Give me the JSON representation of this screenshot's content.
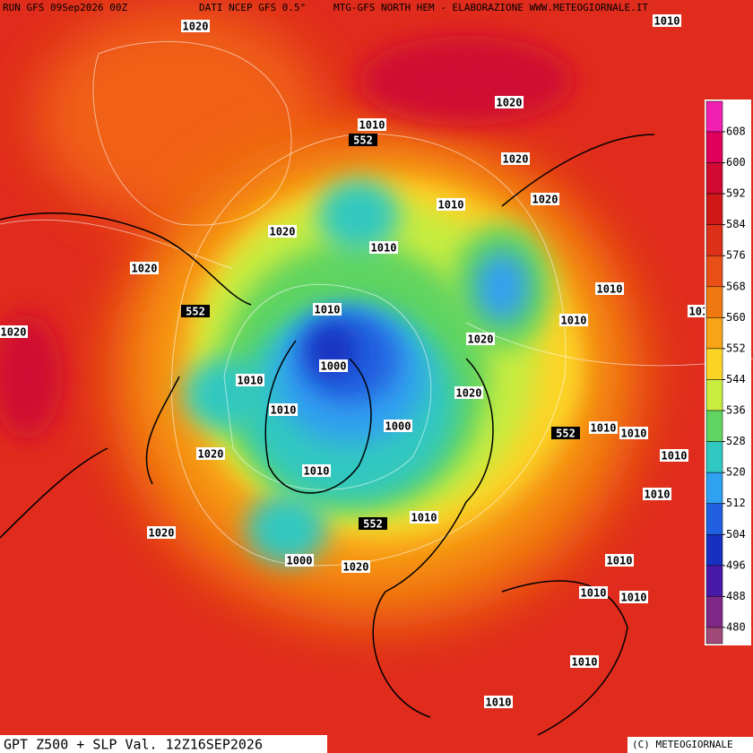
{
  "header": {
    "run": "RUN GFS 09Sep2026 00Z",
    "source": "DATI NCEP GFS 0.5°",
    "credit": "MTG-GFS NORTH HEM - ELABORAZIONE WWW.METEOGIORNALE.IT"
  },
  "footer": {
    "product": "GPT Z500 + SLP Val. 12Z16SEP2026",
    "copyright": "(C) METEOGIORNALE"
  },
  "map_labels": [
    1020,
    1010,
    1020,
    1010,
    552,
    1020,
    1020,
    1010,
    1020,
    1010,
    1020,
    1010,
    552,
    1010,
    1010,
    1010,
    1020,
    1020,
    1000,
    1010,
    1020,
    1010,
    1000,
    1010,
    552,
    1010,
    1020,
    1010,
    1010,
    1010,
    552,
    1010,
    1020,
    1000,
    1020,
    1010,
    1010,
    1010,
    1010,
    1010
  ],
  "colorbar": {
    "values": [
      608,
      600,
      592,
      584,
      576,
      568,
      560,
      552,
      544,
      536,
      528,
      520,
      512,
      504,
      496,
      488,
      480
    ],
    "colors": [
      "#f020b0",
      "#e0005c",
      "#d00a30",
      "#d01818",
      "#dc3018",
      "#e85018",
      "#f07810",
      "#f8a418",
      "#fcd428",
      "#c8ec40",
      "#60d460",
      "#30c8c0",
      "#30a0f0",
      "#2060e0",
      "#1830c0",
      "#4818a8",
      "#802888",
      "#a04878"
    ]
  }
}
